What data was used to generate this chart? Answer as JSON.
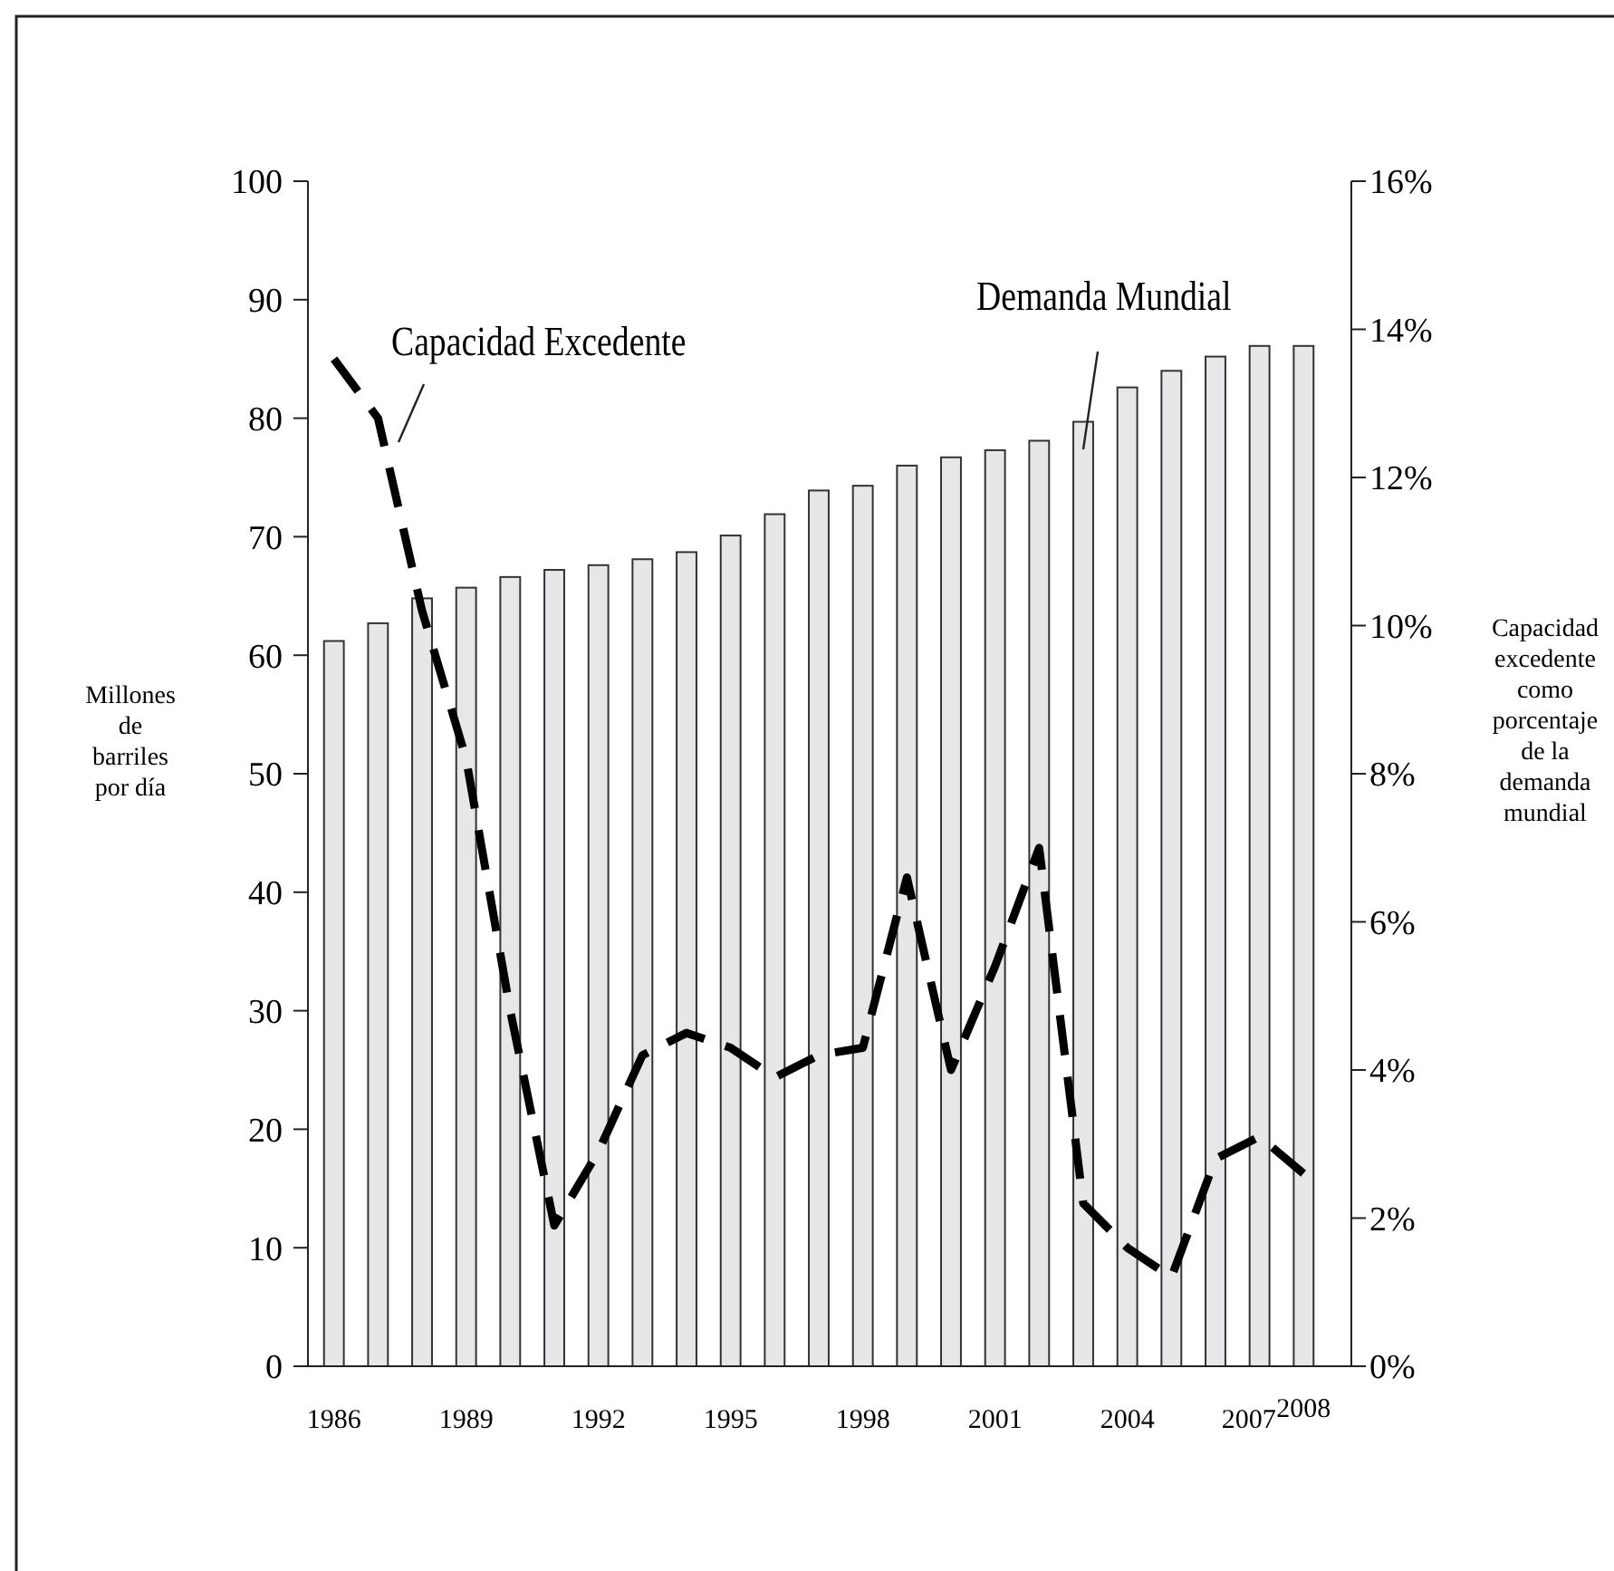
{
  "chart_data": {
    "type": "bar",
    "xlabel": null,
    "ylabel": "Millones de barriles por día",
    "y2label": "Capacidad excedente como porcentaje de la demanda mundial",
    "categories": [
      "1986",
      null,
      null,
      "1989",
      null,
      null,
      "1992",
      null,
      null,
      "1995",
      null,
      null,
      "1998",
      null,
      null,
      "2001",
      null,
      null,
      "2004",
      null,
      null,
      "2007",
      "2008"
    ],
    "series": [
      {
        "type": "bar",
        "color": "#e6e7e8",
        "values": [
          61.2,
          62.7,
          64.8,
          65.7,
          66.6,
          67.2,
          67.6,
          68.1,
          68.7,
          70.1,
          71.9,
          73.9,
          74.3,
          76.0,
          76.7,
          77.3,
          78.1,
          79.7,
          82.6,
          84.0,
          85.2,
          86.1,
          86.1
        ]
      },
      {
        "type": "line",
        "axis": "y2",
        "color": "#000000",
        "line_style": "dashed",
        "values": [
          13.6,
          12.8,
          10.2,
          8.2,
          4.8,
          1.9,
          2.9,
          4.2,
          4.5,
          4.3,
          3.9,
          4.2,
          4.3,
          6.6,
          4.0,
          5.4,
          7.0,
          2.2,
          1.6,
          1.2,
          2.8,
          3.1,
          2.6
        ]
      }
    ],
    "ylim": [
      0,
      100
    ],
    "yticks": [
      0,
      10,
      20,
      30,
      40,
      50,
      60,
      70,
      80,
      90,
      100
    ],
    "y2lim": [
      0,
      16
    ],
    "y2ticks": [
      {
        "value": 0,
        "label": "0%"
      },
      {
        "value": 2,
        "label": "2%"
      },
      {
        "value": 4,
        "label": "4%"
      },
      {
        "value": 6,
        "label": "6%"
      },
      {
        "value": 8,
        "label": "8%"
      },
      {
        "value": 10,
        "label": "10%"
      },
      {
        "value": 12,
        "label": "12%"
      },
      {
        "value": 14,
        "label": "14%"
      },
      {
        "value": 16,
        "label": "16%"
      }
    ],
    "annotations": [
      "Capacidad Excedente",
      "Demanda Mundial"
    ],
    "grid": false
  }
}
